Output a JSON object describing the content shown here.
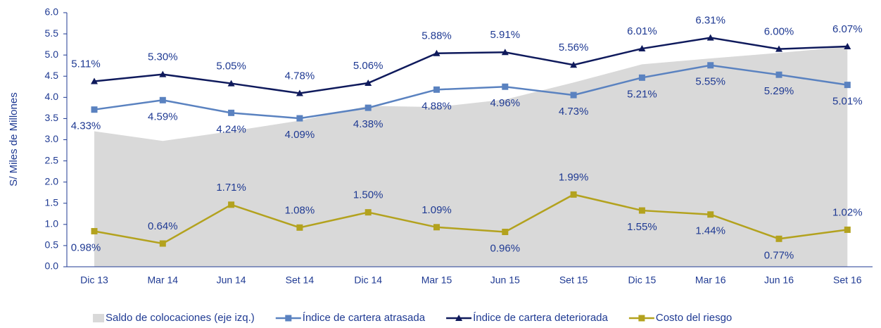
{
  "chart_data": {
    "type": "line",
    "y_label": "S/ Miles de Millones",
    "categories": [
      "Dic 13",
      "Mar 14",
      "Jun 14",
      "Set 14",
      "Dic 14",
      "Mar 15",
      "Jun 15",
      "Set 15",
      "Dic 15",
      "Mar 16",
      "Jun 16",
      "Set 16"
    ],
    "ylim": [
      0,
      6
    ],
    "yticks": [
      {
        "value": 0,
        "label": "0.0"
      },
      {
        "value": 0.5,
        "label": "0.5"
      },
      {
        "value": 1,
        "label": "1.0"
      },
      {
        "value": 1.5,
        "label": "1.5"
      },
      {
        "value": 2,
        "label": "2.0"
      },
      {
        "value": 2.5,
        "label": "2.5"
      },
      {
        "value": 3,
        "label": "3.0"
      },
      {
        "value": 3.5,
        "label": "3.5"
      },
      {
        "value": 4,
        "label": "4.0"
      },
      {
        "value": 4.5,
        "label": "4.5"
      },
      {
        "value": 5,
        "label": "5.0"
      },
      {
        "value": 5.5,
        "label": "5.5"
      },
      {
        "value": 6,
        "label": "6.0"
      }
    ],
    "y2lim": [
      0,
      7
    ],
    "legend": "bottom",
    "series": [
      {
        "name": "Saldo de colocaciones (eje izq.)",
        "kind": "area",
        "color": "#d9d9d9",
        "values": [
          3.2,
          2.97,
          3.2,
          3.45,
          3.8,
          3.77,
          3.95,
          4.35,
          4.78,
          4.92,
          5.05,
          5.2
        ]
      },
      {
        "name": "Índice de cartera atrasada",
        "kind": "line",
        "axis": "y2",
        "marker": "square",
        "color": "#5a82c0",
        "values": [
          4.33,
          4.59,
          4.24,
          4.09,
          4.38,
          4.88,
          4.96,
          4.73,
          5.21,
          5.55,
          5.29,
          5.01
        ],
        "value_labels": [
          "4.33%",
          "4.59%",
          "4.24%",
          "4.09%",
          "4.38%",
          "4.88%",
          "4.96%",
          "4.73%",
          "5.21%",
          "5.55%",
          "5.29%",
          "5.01%"
        ]
      },
      {
        "name": "Índice de cartera deteriorada",
        "kind": "line",
        "axis": "y2",
        "marker": "triangle",
        "color": "#0f1a5c",
        "values": [
          5.11,
          5.3,
          5.05,
          4.78,
          5.06,
          5.88,
          5.91,
          5.56,
          6.01,
          6.31,
          6.0,
          6.07
        ],
        "value_labels": [
          "5.11%",
          "5.30%",
          "5.05%",
          "4.78%",
          "5.06%",
          "5.88%",
          "5.91%",
          "5.56%",
          "6.01%",
          "6.31%",
          "6.00%",
          "6.07%"
        ]
      },
      {
        "name": "Costo del riesgo",
        "kind": "line",
        "axis": "y2",
        "marker": "square",
        "color": "#b3a21e",
        "values": [
          0.98,
          0.64,
          1.71,
          1.08,
          1.5,
          1.09,
          0.96,
          1.99,
          1.55,
          1.44,
          0.77,
          1.02
        ],
        "value_labels": [
          "0.98%",
          "0.64%",
          "1.71%",
          "1.08%",
          "1.50%",
          "1.09%",
          "0.96%",
          "1.99%",
          "1.55%",
          "1.44%",
          "0.77%",
          "1.02%"
        ]
      }
    ]
  }
}
